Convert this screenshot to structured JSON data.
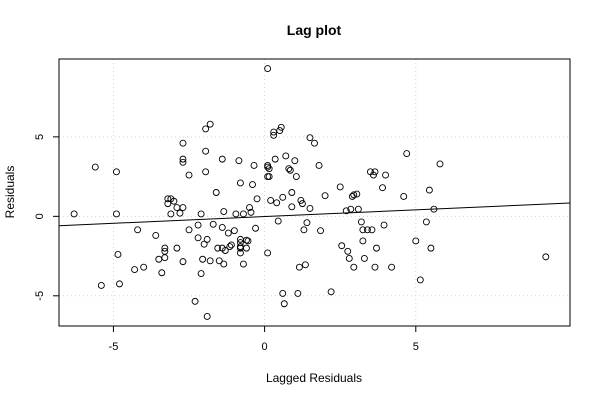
{
  "chart_data": {
    "type": "scatter",
    "title": "Lag plot",
    "xlabel": "Lagged Residuals",
    "ylabel": "Residuals",
    "xlim": [
      -6.8,
      10.1
    ],
    "ylim": [
      -6.9,
      9.9
    ],
    "xticks": [
      -5,
      0,
      5
    ],
    "xtick_labels": [
      "-5",
      "0",
      "5"
    ],
    "yticks": [
      -5,
      0,
      5
    ],
    "ytick_labels": [
      "-5",
      "0",
      "5"
    ],
    "grid": true,
    "marker": "open-circle",
    "regression_line": {
      "x": [
        -6.8,
        10.1
      ],
      "y": [
        -0.59,
        0.84
      ]
    },
    "points": [
      [
        -6.3,
        0.15
      ],
      [
        -5.6,
        3.1
      ],
      [
        -5.4,
        -4.35
      ],
      [
        -4.9,
        2.8
      ],
      [
        -4.9,
        0.15
      ],
      [
        -4.85,
        -2.4
      ],
      [
        -4.8,
        -4.25
      ],
      [
        -4.3,
        -3.35
      ],
      [
        -4.2,
        -0.85
      ],
      [
        -4.0,
        -3.2
      ],
      [
        -3.6,
        -1.2
      ],
      [
        -3.5,
        -2.7
      ],
      [
        -3.4,
        -3.55
      ],
      [
        -3.3,
        -2.0
      ],
      [
        -3.3,
        -2.2
      ],
      [
        -3.3,
        -2.6
      ],
      [
        -3.2,
        1.1
      ],
      [
        -3.2,
        0.8
      ],
      [
        -3.1,
        1.1
      ],
      [
        -3.1,
        0.15
      ],
      [
        -3.0,
        0.95
      ],
      [
        -2.9,
        0.55
      ],
      [
        -2.9,
        -2.0
      ],
      [
        -2.8,
        0.2
      ],
      [
        -2.7,
        4.6
      ],
      [
        -2.7,
        3.6
      ],
      [
        -2.7,
        3.4
      ],
      [
        -2.7,
        0.55
      ],
      [
        -2.7,
        -2.85
      ],
      [
        -2.5,
        2.6
      ],
      [
        -2.5,
        -0.85
      ],
      [
        -2.3,
        -5.35
      ],
      [
        -2.2,
        -0.55
      ],
      [
        -2.2,
        -1.35
      ],
      [
        -2.1,
        0.15
      ],
      [
        -2.1,
        -3.6
      ],
      [
        -2.05,
        -2.7
      ],
      [
        -2.0,
        -1.75
      ],
      [
        -1.95,
        5.5
      ],
      [
        -1.95,
        4.1
      ],
      [
        -1.95,
        2.8
      ],
      [
        -1.9,
        -6.3
      ],
      [
        -1.9,
        -1.45
      ],
      [
        -1.8,
        5.8
      ],
      [
        -1.8,
        -2.8
      ],
      [
        -1.7,
        -0.5
      ],
      [
        -1.6,
        1.5
      ],
      [
        -1.55,
        -2.0
      ],
      [
        -1.5,
        -2.8
      ],
      [
        -1.4,
        3.6
      ],
      [
        -1.4,
        -0.7
      ],
      [
        -1.4,
        -2.0
      ],
      [
        -1.35,
        -3.0
      ],
      [
        -1.35,
        0.3
      ],
      [
        -1.3,
        -2.15
      ],
      [
        -1.2,
        -1.05
      ],
      [
        -1.15,
        -1.9
      ],
      [
        -1.1,
        -1.8
      ],
      [
        -1.0,
        -0.9
      ],
      [
        -0.95,
        0.15
      ],
      [
        -0.85,
        3.5
      ],
      [
        -0.8,
        2.1
      ],
      [
        -0.8,
        -1.45
      ],
      [
        -0.8,
        -1.65
      ],
      [
        -0.8,
        -1.9
      ],
      [
        -0.8,
        -2.0
      ],
      [
        -0.8,
        -2.3
      ],
      [
        -0.7,
        0.15
      ],
      [
        -0.7,
        -3.0
      ],
      [
        -0.6,
        -1.5
      ],
      [
        -0.6,
        -2.0
      ],
      [
        -0.55,
        -1.55
      ],
      [
        -0.5,
        0.55
      ],
      [
        -0.45,
        0.25
      ],
      [
        -0.4,
        2.0
      ],
      [
        -0.35,
        3.2
      ],
      [
        -0.3,
        -0.75
      ],
      [
        -0.25,
        1.1
      ],
      [
        0.1,
        9.3
      ],
      [
        0.1,
        3.2
      ],
      [
        0.1,
        3.1
      ],
      [
        0.1,
        2.5
      ],
      [
        0.1,
        -2.3
      ],
      [
        0.15,
        3.0
      ],
      [
        0.15,
        2.5
      ],
      [
        0.2,
        1.0
      ],
      [
        0.3,
        5.3
      ],
      [
        0.3,
        5.1
      ],
      [
        0.35,
        3.6
      ],
      [
        0.4,
        0.85
      ],
      [
        0.45,
        -0.3
      ],
      [
        0.5,
        5.4
      ],
      [
        0.55,
        5.6
      ],
      [
        0.6,
        1.2
      ],
      [
        0.6,
        -4.85
      ],
      [
        0.65,
        -5.5
      ],
      [
        0.7,
        3.8
      ],
      [
        0.8,
        3.0
      ],
      [
        0.85,
        2.9
      ],
      [
        0.9,
        1.5
      ],
      [
        0.9,
        0.6
      ],
      [
        1.0,
        3.5
      ],
      [
        1.05,
        2.5
      ],
      [
        1.1,
        -4.85
      ],
      [
        1.15,
        -3.2
      ],
      [
        1.2,
        1.0
      ],
      [
        1.25,
        0.8
      ],
      [
        1.3,
        -0.85
      ],
      [
        1.35,
        -3.05
      ],
      [
        1.4,
        -0.4
      ],
      [
        1.5,
        0.5
      ],
      [
        1.5,
        4.95
      ],
      [
        1.65,
        4.6
      ],
      [
        1.8,
        3.2
      ],
      [
        1.85,
        -0.9
      ],
      [
        2.0,
        1.3
      ],
      [
        2.2,
        -4.75
      ],
      [
        2.5,
        1.85
      ],
      [
        2.55,
        -1.85
      ],
      [
        2.7,
        0.35
      ],
      [
        2.75,
        -2.2
      ],
      [
        2.8,
        -2.65
      ],
      [
        2.85,
        0.45
      ],
      [
        2.9,
        1.25
      ],
      [
        2.95,
        1.35
      ],
      [
        2.95,
        -3.2
      ],
      [
        3.05,
        1.4
      ],
      [
        3.1,
        0.45
      ],
      [
        3.2,
        -0.35
      ],
      [
        3.25,
        -0.85
      ],
      [
        3.25,
        -1.55
      ],
      [
        3.3,
        -2.65
      ],
      [
        3.4,
        -0.85
      ],
      [
        3.5,
        2.8
      ],
      [
        3.55,
        -0.85
      ],
      [
        3.6,
        2.6
      ],
      [
        3.65,
        2.8
      ],
      [
        3.65,
        -3.2
      ],
      [
        3.7,
        -2.0
      ],
      [
        3.9,
        1.8
      ],
      [
        3.95,
        -0.55
      ],
      [
        4.0,
        2.6
      ],
      [
        4.2,
        -3.2
      ],
      [
        4.6,
        1.25
      ],
      [
        4.7,
        3.95
      ],
      [
        5.0,
        -1.55
      ],
      [
        5.15,
        -4.0
      ],
      [
        5.35,
        -0.35
      ],
      [
        5.45,
        1.65
      ],
      [
        5.5,
        -2.0
      ],
      [
        5.6,
        0.45
      ],
      [
        5.8,
        3.3
      ],
      [
        9.3,
        -2.55
      ]
    ]
  }
}
